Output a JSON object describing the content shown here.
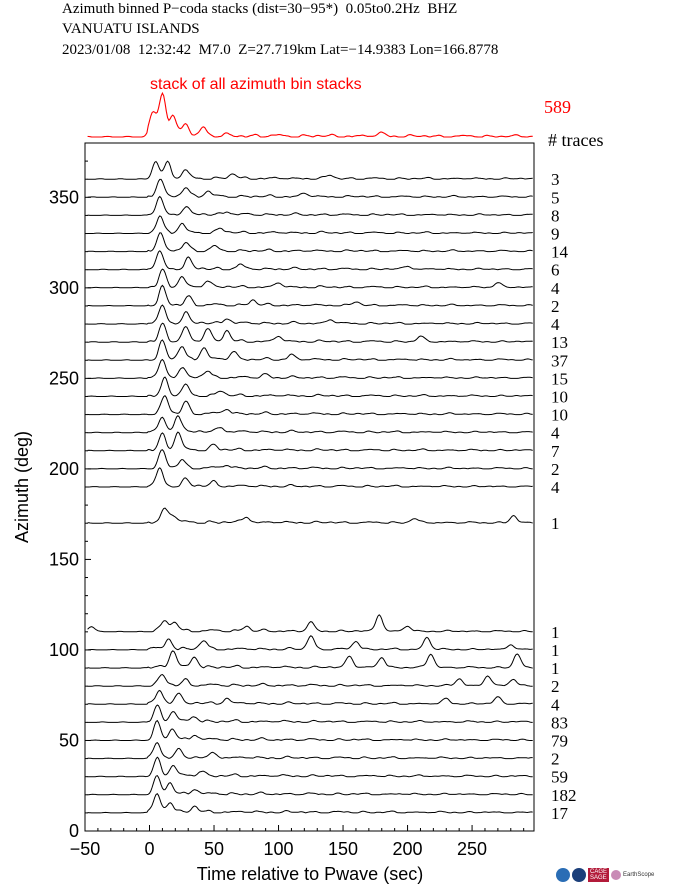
{
  "header": {
    "line1": "Azimuth binned P−coda stacks (dist=30−95*)  0.05to0.2Hz  BHZ",
    "line2": "VANUATU ISLANDS",
    "line3": "2023/01/08  12:32:42  M7.0  Z=27.719km Lat=−14.9383 Lon=166.8778"
  },
  "colors": {
    "stack": "#ff0000",
    "trace": "#000000"
  },
  "logos": {
    "cage": "CAGE",
    "sage": "SAGE",
    "earthscope": "EarthScope"
  },
  "chart_data": {
    "type": "line",
    "title": "stack of all azimuth bin stacks",
    "xlabel": "Time relative to Pwave (sec)",
    "ylabel": "Azimuth (deg)",
    "xlim": [
      -50,
      298
    ],
    "ylim": [
      0,
      380
    ],
    "xticks": [
      -50,
      0,
      50,
      100,
      150,
      200,
      250
    ],
    "yticks": [
      0,
      50,
      100,
      150,
      200,
      250,
      300,
      350
    ],
    "total_traces": "589",
    "traces_label": "# traces",
    "stack_of_all": {
      "color": "#ff0000",
      "peaks": [
        [
          10,
          1.0
        ],
        [
          3,
          0.55
        ],
        [
          18,
          0.45
        ],
        [
          28,
          0.3
        ],
        [
          42,
          0.2
        ],
        [
          180,
          0.08
        ]
      ]
    },
    "traces": [
      {
        "azimuth": 360,
        "count": "3",
        "peaks": [
          [
            5,
            1.0
          ],
          [
            14,
            0.9
          ],
          [
            28,
            0.45
          ],
          [
            65,
            0.25
          ],
          [
            140,
            0.2
          ]
        ]
      },
      {
        "azimuth": 350,
        "count": "5",
        "peaks": [
          [
            8,
            1.0
          ],
          [
            28,
            0.55
          ],
          [
            45,
            0.3
          ],
          [
            120,
            0.2
          ]
        ]
      },
      {
        "azimuth": 340,
        "count": "8",
        "peaks": [
          [
            8,
            1.0
          ],
          [
            28,
            0.45
          ],
          [
            60,
            0.2
          ]
        ]
      },
      {
        "azimuth": 330,
        "count": "9",
        "peaks": [
          [
            8,
            1.0
          ],
          [
            25,
            0.5
          ],
          [
            55,
            0.25
          ]
        ]
      },
      {
        "azimuth": 320,
        "count": "14",
        "peaks": [
          [
            8,
            1.0
          ],
          [
            28,
            0.5
          ],
          [
            50,
            0.25
          ]
        ]
      },
      {
        "azimuth": 310,
        "count": "6",
        "peaks": [
          [
            8,
            1.0
          ],
          [
            30,
            0.6
          ],
          [
            70,
            0.25
          ],
          [
            200,
            0.2
          ]
        ]
      },
      {
        "azimuth": 300,
        "count": "4",
        "peaks": [
          [
            10,
            1.0
          ],
          [
            25,
            0.55
          ],
          [
            45,
            0.4
          ],
          [
            100,
            0.25
          ],
          [
            270,
            0.3
          ]
        ]
      },
      {
        "azimuth": 290,
        "count": "2",
        "peaks": [
          [
            10,
            1.0
          ],
          [
            30,
            0.5
          ],
          [
            80,
            0.3
          ],
          [
            160,
            0.2
          ]
        ]
      },
      {
        "azimuth": 280,
        "count": "4",
        "peaks": [
          [
            10,
            1.0
          ],
          [
            28,
            0.6
          ],
          [
            60,
            0.3
          ],
          [
            140,
            0.25
          ]
        ]
      },
      {
        "azimuth": 270,
        "count": "13",
        "peaks": [
          [
            10,
            1.0
          ],
          [
            28,
            0.8
          ],
          [
            45,
            0.8
          ],
          [
            60,
            0.6
          ],
          [
            100,
            0.3
          ],
          [
            210,
            0.3
          ]
        ]
      },
      {
        "azimuth": 260,
        "count": "37",
        "peaks": [
          [
            10,
            1.0
          ],
          [
            25,
            0.8
          ],
          [
            42,
            0.7
          ],
          [
            65,
            0.5
          ],
          [
            110,
            0.3
          ]
        ]
      },
      {
        "azimuth": 250,
        "count": "15",
        "peaks": [
          [
            10,
            1.0
          ],
          [
            25,
            0.6
          ],
          [
            45,
            0.4
          ],
          [
            90,
            0.2
          ]
        ]
      },
      {
        "azimuth": 240,
        "count": "10",
        "peaks": [
          [
            12,
            1.0
          ],
          [
            28,
            0.6
          ],
          [
            55,
            0.3
          ]
        ]
      },
      {
        "azimuth": 230,
        "count": "10",
        "peaks": [
          [
            12,
            1.0
          ],
          [
            28,
            0.7
          ],
          [
            60,
            0.3
          ]
        ]
      },
      {
        "azimuth": 220,
        "count": "4",
        "peaks": [
          [
            10,
            0.8
          ],
          [
            22,
            1.0
          ],
          [
            55,
            0.3
          ]
        ]
      },
      {
        "azimuth": 210,
        "count": "7",
        "peaks": [
          [
            10,
            0.9
          ],
          [
            22,
            1.0
          ],
          [
            50,
            0.3
          ]
        ]
      },
      {
        "azimuth": 200,
        "count": "2",
        "peaks": [
          [
            10,
            1.0
          ],
          [
            25,
            0.5
          ],
          [
            60,
            0.2
          ]
        ]
      },
      {
        "azimuth": 190,
        "count": "4",
        "peaks": [
          [
            8,
            1.0
          ],
          [
            28,
            0.4
          ],
          [
            50,
            0.25
          ]
        ]
      },
      {
        "azimuth": 170,
        "count": "1",
        "peaks": [
          [
            12,
            0.8
          ],
          [
            18,
            0.4
          ],
          [
            75,
            0.35
          ],
          [
            205,
            0.25
          ],
          [
            282,
            0.4
          ]
        ]
      },
      {
        "azimuth": 110,
        "count": "1",
        "peaks": [
          [
            -45,
            0.3
          ],
          [
            12,
            0.6
          ],
          [
            20,
            0.5
          ],
          [
            75,
            0.3
          ],
          [
            125,
            0.5
          ],
          [
            178,
            1.0
          ],
          [
            200,
            0.3
          ]
        ]
      },
      {
        "azimuth": 100,
        "count": "1",
        "peaks": [
          [
            15,
            0.6
          ],
          [
            42,
            0.5
          ],
          [
            125,
            0.8
          ],
          [
            160,
            0.5
          ],
          [
            215,
            0.7
          ],
          [
            280,
            0.3
          ]
        ]
      },
      {
        "azimuth": 90,
        "count": "1",
        "peaks": [
          [
            18,
            1.0
          ],
          [
            35,
            0.6
          ],
          [
            155,
            0.7
          ],
          [
            180,
            0.6
          ],
          [
            218,
            0.8
          ],
          [
            285,
            0.8
          ]
        ]
      },
      {
        "azimuth": 80,
        "count": "2",
        "peaks": [
          [
            10,
            0.6
          ],
          [
            28,
            0.3
          ],
          [
            240,
            0.4
          ],
          [
            262,
            0.6
          ],
          [
            282,
            0.4
          ]
        ]
      },
      {
        "azimuth": 70,
        "count": "4",
        "peaks": [
          [
            8,
            0.7
          ],
          [
            22,
            0.6
          ],
          [
            60,
            0.3
          ],
          [
            230,
            0.3
          ],
          [
            270,
            0.4
          ]
        ]
      },
      {
        "azimuth": 60,
        "count": "83",
        "peaks": [
          [
            6,
            0.9
          ],
          [
            18,
            0.6
          ],
          [
            35,
            0.3
          ]
        ]
      },
      {
        "azimuth": 50,
        "count": "79",
        "peaks": [
          [
            6,
            1.0
          ],
          [
            18,
            0.6
          ],
          [
            35,
            0.3
          ]
        ]
      },
      {
        "azimuth": 40,
        "count": "2",
        "peaks": [
          [
            6,
            0.8
          ],
          [
            22,
            0.5
          ],
          [
            50,
            0.3
          ]
        ]
      },
      {
        "azimuth": 30,
        "count": "59",
        "peaks": [
          [
            6,
            1.0
          ],
          [
            18,
            0.6
          ],
          [
            40,
            0.3
          ]
        ]
      },
      {
        "azimuth": 20,
        "count": "182",
        "peaks": [
          [
            6,
            1.0
          ],
          [
            16,
            0.6
          ],
          [
            35,
            0.3
          ]
        ]
      },
      {
        "azimuth": 10,
        "count": "17",
        "peaks": [
          [
            6,
            1.0
          ],
          [
            16,
            0.6
          ],
          [
            35,
            0.3
          ]
        ]
      }
    ]
  }
}
